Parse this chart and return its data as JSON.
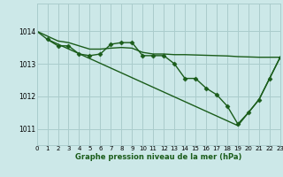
{
  "title": "Graphe pression niveau de la mer (hPa)",
  "bg_color": "#cce8e8",
  "grid_color": "#aacccc",
  "line_color": "#1a5c1a",
  "xlim": [
    0,
    23
  ],
  "ylim": [
    1010.5,
    1014.85
  ],
  "yticks": [
    1011,
    1012,
    1013,
    1014
  ],
  "xticks": [
    0,
    1,
    2,
    3,
    4,
    5,
    6,
    7,
    8,
    9,
    10,
    11,
    12,
    13,
    14,
    15,
    16,
    17,
    18,
    19,
    20,
    21,
    22,
    23
  ],
  "series": [
    {
      "x": [
        0,
        1,
        2,
        3,
        4,
        5,
        6,
        7,
        8,
        9,
        10,
        11,
        12,
        13,
        14,
        15,
        16,
        17,
        18,
        19,
        20,
        21,
        22,
        23
      ],
      "y": [
        1014.0,
        1013.85,
        1013.7,
        1013.65,
        1013.55,
        1013.45,
        1013.45,
        1013.48,
        1013.5,
        1013.48,
        1013.35,
        1013.3,
        1013.3,
        1013.28,
        1013.28,
        1013.27,
        1013.26,
        1013.25,
        1013.24,
        1013.22,
        1013.21,
        1013.2,
        1013.2,
        1013.2
      ],
      "marker": "",
      "markersize": 0,
      "linewidth": 1.0
    },
    {
      "x": [
        1,
        2,
        3,
        4,
        5,
        6,
        7,
        8,
        9,
        10,
        11,
        12,
        13,
        14,
        15,
        16,
        17,
        18,
        19,
        20,
        21,
        22,
        23
      ],
      "y": [
        1013.75,
        1013.55,
        1013.55,
        1013.3,
        1013.25,
        1013.3,
        1013.6,
        1013.65,
        1013.65,
        1013.25,
        1013.25,
        1013.25,
        1013.0,
        1012.55,
        1012.55,
        1012.25,
        1012.05,
        1011.7,
        1011.15,
        1011.5,
        1011.9,
        1012.55,
        1013.2
      ],
      "marker": "D",
      "markersize": 2.5,
      "linewidth": 1.0
    },
    {
      "x": [
        0,
        1,
        19,
        20,
        21,
        22,
        23
      ],
      "y": [
        1014.0,
        1013.75,
        1011.1,
        1011.5,
        1011.9,
        1012.55,
        1013.2
      ],
      "marker": "",
      "markersize": 0,
      "linewidth": 1.0
    }
  ]
}
